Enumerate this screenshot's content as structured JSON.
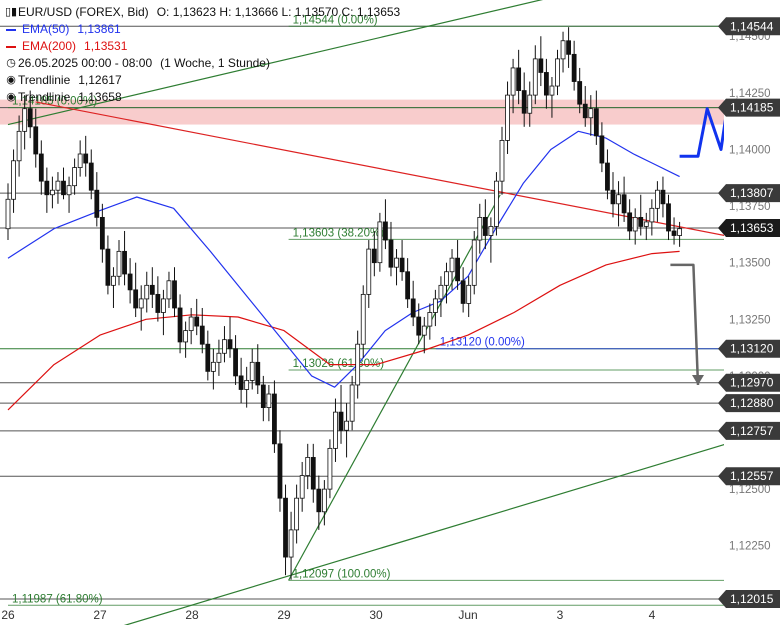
{
  "legend": {
    "title": "EUR/USD (FOREX, Bid)",
    "ohlc": "O: 1,13623  H: 1,13666  L: 1,13570  C: 1,13653",
    "ema50_label": "EMA(50)",
    "ema50_value": "1,13861",
    "ema200_label": "EMA(200)",
    "ema200_value": "1,13531",
    "range": "26.05.2025 00:00 - 08:00",
    "period": "(1 Woche, 1 Stunde)",
    "trend1_label": "Trendlinie",
    "trend1_value": "1,12617",
    "trend2_label": "Trendlinie",
    "trend2_value": "1,13658"
  },
  "colors": {
    "ema50": "#2233ee",
    "ema200": "#dd1111",
    "fib": "#2e7d32",
    "trend": "#dd2222",
    "zone": "#f7c3c3",
    "forecast_up": "#1133ee",
    "forecast_down": "#666666",
    "candle": "#111111",
    "marker_bg": "#3a3a3a"
  },
  "chart_data": {
    "type": "candlestick",
    "title": "EUR/USD (FOREX, Bid)",
    "ylim": [
      1.119,
      1.1466
    ],
    "x_ticks": [
      {
        "label": "26",
        "day": 0
      },
      {
        "label": "27",
        "day": 1
      },
      {
        "label": "28",
        "day": 2
      },
      {
        "label": "29",
        "day": 3
      },
      {
        "label": "30",
        "day": 4
      },
      {
        "label": "Jun",
        "day": 5
      },
      {
        "label": "3",
        "day": 6
      },
      {
        "label": "4",
        "day": 7
      }
    ],
    "y_ticks": [
      {
        "value": 1.145,
        "label": "1,14500"
      },
      {
        "value": 1.1425,
        "label": "1,14250"
      },
      {
        "value": 1.14,
        "label": "1,14000"
      },
      {
        "value": 1.1375,
        "label": "1,13750"
      },
      {
        "value": 1.135,
        "label": "1,13500"
      },
      {
        "value": 1.1325,
        "label": "1,13250"
      },
      {
        "value": 1.13,
        "label": "1,13000"
      },
      {
        "value": 1.1275,
        "label": "1,12750"
      },
      {
        "value": 1.125,
        "label": "1,12500"
      },
      {
        "value": 1.1225,
        "label": "1,12250"
      }
    ],
    "levels": [
      {
        "value": 1.14544,
        "label": "1,14544",
        "color": "#111111"
      },
      {
        "value": 1.14185,
        "label": "1,14185",
        "color": "#111111"
      },
      {
        "value": 1.13807,
        "label": "1,13807",
        "color": "#111111"
      },
      {
        "value": 1.13653,
        "label": "1,13653",
        "color": "#111111"
      },
      {
        "value": 1.1312,
        "label": "1,13120",
        "color": "#2e7d32"
      },
      {
        "value": 1.1297,
        "label": "1,12970",
        "color": "#111111"
      },
      {
        "value": 1.1288,
        "label": "1,12880",
        "color": "#111111"
      },
      {
        "value": 1.12757,
        "label": "1,12757",
        "color": "#111111"
      },
      {
        "value": 1.12557,
        "label": "1,12557",
        "color": "#111111"
      },
      {
        "value": 1.12015,
        "label": "1,12015",
        "color": "#111111"
      }
    ],
    "fib_lines": [
      {
        "value": 1.14544,
        "label": "1,14544 (0.00%)",
        "from_day": 3.05
      },
      {
        "value": 1.14185,
        "label": "1,14185 (0.00%)",
        "from_day": 0
      },
      {
        "value": 1.13603,
        "label": "1,13603 (38.20%)",
        "from_day": 3.05
      },
      {
        "value": 1.13026,
        "label": "1,13026 (61.80%)",
        "from_day": 3.05
      },
      {
        "value": 1.12097,
        "label": "1,12097 (100.00%)",
        "from_day": 3.05
      },
      {
        "value": 1.11987,
        "label": "1,11987 (61.80%)",
        "from_day": 0
      },
      {
        "value": 1.1312,
        "label": "1,13120 (0.00%)",
        "from_day": 4.65,
        "color": "#2233ee"
      }
    ],
    "resistance_zone": [
      1.1411,
      1.1422
    ],
    "trendlines": [
      {
        "name": "Trendlinie",
        "color": "#2e7d32",
        "points": [
          [
            0.0,
            1.1411
          ],
          [
            7.05,
            1.1478
          ]
        ]
      },
      {
        "name": "Trendlinie",
        "color": "#2e7d32",
        "points": [
          [
            3.05,
            1.12097
          ],
          [
            5.35,
            1.138
          ]
        ]
      },
      {
        "name": "Trendlinie",
        "color": "#2e7d32",
        "points": [
          [
            1.2,
            1.1189
          ],
          [
            8.3,
            1.1276
          ]
        ]
      },
      {
        "name": "Trendlinie",
        "color": "#dd2222",
        "points": [
          [
            0.3,
            1.1421
          ],
          [
            8.3,
            1.1358
          ]
        ]
      }
    ],
    "ema50": [
      [
        0,
        1.1352
      ],
      [
        0.5,
        1.1365
      ],
      [
        1.0,
        1.1373
      ],
      [
        1.4,
        1.1379
      ],
      [
        1.8,
        1.1374
      ],
      [
        2.2,
        1.1355
      ],
      [
        2.6,
        1.1335
      ],
      [
        3.0,
        1.1315
      ],
      [
        3.3,
        1.13
      ],
      [
        3.55,
        1.1295
      ],
      [
        3.8,
        1.1305
      ],
      [
        4.1,
        1.132
      ],
      [
        4.4,
        1.1328
      ],
      [
        4.7,
        1.1333
      ],
      [
        5.0,
        1.1344
      ],
      [
        5.3,
        1.1365
      ],
      [
        5.6,
        1.1385
      ],
      [
        5.9,
        1.14
      ],
      [
        6.2,
        1.1408
      ],
      [
        6.5,
        1.1405
      ],
      [
        6.8,
        1.1398
      ],
      [
        7.0,
        1.1394
      ],
      [
        7.3,
        1.1388
      ]
    ],
    "ema200": [
      [
        0,
        1.1285
      ],
      [
        0.5,
        1.1305
      ],
      [
        1.0,
        1.1318
      ],
      [
        1.5,
        1.1325
      ],
      [
        2.0,
        1.1327
      ],
      [
        2.5,
        1.1326
      ],
      [
        3.0,
        1.132
      ],
      [
        3.5,
        1.1305
      ],
      [
        4.0,
        1.1305
      ],
      [
        4.5,
        1.1311
      ],
      [
        5.0,
        1.1318
      ],
      [
        5.5,
        1.1328
      ],
      [
        6.0,
        1.134
      ],
      [
        6.5,
        1.1349
      ],
      [
        7.0,
        1.1354
      ],
      [
        7.3,
        1.1355
      ]
    ],
    "forecast_up": [
      [
        7.3,
        1.1397
      ],
      [
        7.5,
        1.1397
      ],
      [
        7.6,
        1.1418
      ],
      [
        7.75,
        1.14
      ],
      [
        7.95,
        1.1455
      ],
      [
        8.1,
        1.1435
      ],
      [
        8.25,
        1.1456
      ]
    ],
    "forecast_down": [
      [
        7.2,
        1.1349
      ],
      [
        7.45,
        1.1349
      ],
      [
        7.5,
        1.1296
      ]
    ],
    "candles": [
      [
        1.1365,
        1.1385,
        1.136,
        1.1378
      ],
      [
        1.1378,
        1.14,
        1.1372,
        1.1395
      ],
      [
        1.1395,
        1.1415,
        1.1388,
        1.1408
      ],
      [
        1.1408,
        1.1424,
        1.14,
        1.1418
      ],
      [
        1.1418,
        1.1426,
        1.1405,
        1.141
      ],
      [
        1.141,
        1.1418,
        1.1392,
        1.1398
      ],
      [
        1.1398,
        1.1404,
        1.138,
        1.1386
      ],
      [
        1.1386,
        1.1392,
        1.1372,
        1.138
      ],
      [
        1.138,
        1.1388,
        1.1374,
        1.1382
      ],
      [
        1.1382,
        1.139,
        1.1376,
        1.1386
      ],
      [
        1.1386,
        1.1392,
        1.1378,
        1.138
      ],
      [
        1.138,
        1.1388,
        1.1372,
        1.1384
      ],
      [
        1.1384,
        1.1396,
        1.138,
        1.1392
      ],
      [
        1.1392,
        1.1404,
        1.1388,
        1.1398
      ],
      [
        1.1398,
        1.1406,
        1.1388,
        1.1394
      ],
      [
        1.1394,
        1.14,
        1.1378,
        1.1382
      ],
      [
        1.1382,
        1.139,
        1.1366,
        1.137
      ],
      [
        1.137,
        1.1376,
        1.135,
        1.1356
      ],
      [
        1.1356,
        1.1362,
        1.1336,
        1.134
      ],
      [
        1.134,
        1.1348,
        1.133,
        1.1344
      ],
      [
        1.1344,
        1.136,
        1.134,
        1.1355
      ],
      [
        1.1355,
        1.1364,
        1.134,
        1.1345
      ],
      [
        1.1345,
        1.1352,
        1.1332,
        1.1338
      ],
      [
        1.1338,
        1.135,
        1.1326,
        1.133
      ],
      [
        1.133,
        1.134,
        1.132,
        1.1334
      ],
      [
        1.1334,
        1.1346,
        1.1328,
        1.134
      ],
      [
        1.134,
        1.1348,
        1.133,
        1.1336
      ],
      [
        1.1336,
        1.1344,
        1.1324,
        1.1328
      ],
      [
        1.1328,
        1.1338,
        1.1318,
        1.1334
      ],
      [
        1.1334,
        1.1346,
        1.133,
        1.1342
      ],
      [
        1.1342,
        1.1348,
        1.1326,
        1.133
      ],
      [
        1.133,
        1.1336,
        1.131,
        1.1315
      ],
      [
        1.1315,
        1.1324,
        1.1308,
        1.132
      ],
      [
        1.132,
        1.133,
        1.1314,
        1.1326
      ],
      [
        1.1326,
        1.1334,
        1.1318,
        1.1322
      ],
      [
        1.1322,
        1.133,
        1.131,
        1.1314
      ],
      [
        1.1314,
        1.132,
        1.1298,
        1.1302
      ],
      [
        1.1302,
        1.1312,
        1.1294,
        1.1306
      ],
      [
        1.1306,
        1.1316,
        1.13,
        1.131
      ],
      [
        1.131,
        1.1322,
        1.1306,
        1.1316
      ],
      [
        1.1316,
        1.1326,
        1.1308,
        1.1312
      ],
      [
        1.1312,
        1.1318,
        1.1296,
        1.13
      ],
      [
        1.13,
        1.1308,
        1.1288,
        1.1294
      ],
      [
        1.1294,
        1.1304,
        1.1286,
        1.1298
      ],
      [
        1.1298,
        1.1312,
        1.1294,
        1.1306
      ],
      [
        1.1306,
        1.1314,
        1.1292,
        1.1296
      ],
      [
        1.1296,
        1.13,
        1.128,
        1.1286
      ],
      [
        1.1286,
        1.1296,
        1.128,
        1.1292
      ],
      [
        1.1292,
        1.1298,
        1.1266,
        1.127
      ],
      [
        1.127,
        1.1276,
        1.124,
        1.1246
      ],
      [
        1.1246,
        1.1252,
        1.1212,
        1.122
      ],
      [
        1.122,
        1.124,
        1.121,
        1.1232
      ],
      [
        1.1232,
        1.1252,
        1.1226,
        1.1246
      ],
      [
        1.1246,
        1.1262,
        1.124,
        1.1256
      ],
      [
        1.1256,
        1.127,
        1.125,
        1.1264
      ],
      [
        1.1264,
        1.127,
        1.1244,
        1.125
      ],
      [
        1.125,
        1.1256,
        1.1232,
        1.124
      ],
      [
        1.124,
        1.1254,
        1.1234,
        1.125
      ],
      [
        1.125,
        1.1272,
        1.1246,
        1.1268
      ],
      [
        1.1268,
        1.129,
        1.1262,
        1.1284
      ],
      [
        1.1284,
        1.1296,
        1.127,
        1.1276
      ],
      [
        1.1276,
        1.1288,
        1.1264,
        1.128
      ],
      [
        1.128,
        1.13,
        1.1276,
        1.1296
      ],
      [
        1.1296,
        1.132,
        1.129,
        1.1314
      ],
      [
        1.1314,
        1.134,
        1.1308,
        1.1336
      ],
      [
        1.1336,
        1.136,
        1.133,
        1.1356
      ],
      [
        1.1356,
        1.1364,
        1.1344,
        1.135
      ],
      [
        1.135,
        1.1372,
        1.1346,
        1.1368
      ],
      [
        1.1368,
        1.1378,
        1.1356,
        1.136
      ],
      [
        1.136,
        1.1368,
        1.1344,
        1.1348
      ],
      [
        1.1348,
        1.1356,
        1.134,
        1.1352
      ],
      [
        1.1352,
        1.136,
        1.1342,
        1.1346
      ],
      [
        1.1346,
        1.1352,
        1.133,
        1.1334
      ],
      [
        1.1334,
        1.1342,
        1.1322,
        1.1326
      ],
      [
        1.1326,
        1.1332,
        1.1314,
        1.1318
      ],
      [
        1.1318,
        1.1326,
        1.131,
        1.1322
      ],
      [
        1.1322,
        1.1332,
        1.1316,
        1.1328
      ],
      [
        1.1328,
        1.1338,
        1.1322,
        1.1334
      ],
      [
        1.1334,
        1.1344,
        1.1326,
        1.134
      ],
      [
        1.134,
        1.135,
        1.1332,
        1.1346
      ],
      [
        1.1346,
        1.1356,
        1.1338,
        1.1352
      ],
      [
        1.1352,
        1.136,
        1.1338,
        1.1342
      ],
      [
        1.1342,
        1.1348,
        1.1328,
        1.1332
      ],
      [
        1.1332,
        1.1344,
        1.1326,
        1.134
      ],
      [
        1.134,
        1.1364,
        1.1336,
        1.136
      ],
      [
        1.136,
        1.1376,
        1.1354,
        1.137
      ],
      [
        1.137,
        1.1378,
        1.1356,
        1.1362
      ],
      [
        1.1362,
        1.137,
        1.135,
        1.1366
      ],
      [
        1.1366,
        1.139,
        1.1362,
        1.1386
      ],
      [
        1.1386,
        1.141,
        1.138,
        1.1404
      ],
      [
        1.1404,
        1.143,
        1.1398,
        1.1424
      ],
      [
        1.1424,
        1.144,
        1.1416,
        1.1436
      ],
      [
        1.1436,
        1.1444,
        1.142,
        1.1426
      ],
      [
        1.1426,
        1.1434,
        1.141,
        1.1416
      ],
      [
        1.1416,
        1.143,
        1.141,
        1.1424
      ],
      [
        1.1424,
        1.1446,
        1.142,
        1.144
      ],
      [
        1.144,
        1.145,
        1.1428,
        1.1434
      ],
      [
        1.1434,
        1.144,
        1.1418,
        1.1424
      ],
      [
        1.1424,
        1.1432,
        1.1414,
        1.1428
      ],
      [
        1.1428,
        1.1444,
        1.1424,
        1.144
      ],
      [
        1.144,
        1.1452,
        1.1434,
        1.1448
      ],
      [
        1.1448,
        1.1454,
        1.1436,
        1.1442
      ],
      [
        1.1442,
        1.1448,
        1.1426,
        1.143
      ],
      [
        1.143,
        1.1436,
        1.1416,
        1.142
      ],
      [
        1.142,
        1.1428,
        1.141,
        1.1414
      ],
      [
        1.1414,
        1.1424,
        1.1406,
        1.1418
      ],
      [
        1.1418,
        1.1426,
        1.1402,
        1.1406
      ],
      [
        1.1406,
        1.1412,
        1.139,
        1.1394
      ],
      [
        1.1394,
        1.14,
        1.1378,
        1.1382
      ],
      [
        1.1382,
        1.139,
        1.137,
        1.1376
      ],
      [
        1.1376,
        1.1386,
        1.1366,
        1.138
      ],
      [
        1.138,
        1.1388,
        1.1368,
        1.1372
      ],
      [
        1.1372,
        1.1378,
        1.136,
        1.1364
      ],
      [
        1.1364,
        1.1374,
        1.1358,
        1.137
      ],
      [
        1.137,
        1.138,
        1.1362,
        1.1366
      ],
      [
        1.1366,
        1.1372,
        1.136,
        1.1368
      ],
      [
        1.1368,
        1.1378,
        1.1362,
        1.1374
      ],
      [
        1.1374,
        1.1386,
        1.1368,
        1.1382
      ],
      [
        1.1382,
        1.1388,
        1.137,
        1.1376
      ],
      [
        1.1376,
        1.138,
        1.136,
        1.1364
      ],
      [
        1.1364,
        1.137,
        1.1358,
        1.1362
      ],
      [
        1.1362,
        1.1368,
        1.1357,
        1.1365
      ]
    ]
  }
}
